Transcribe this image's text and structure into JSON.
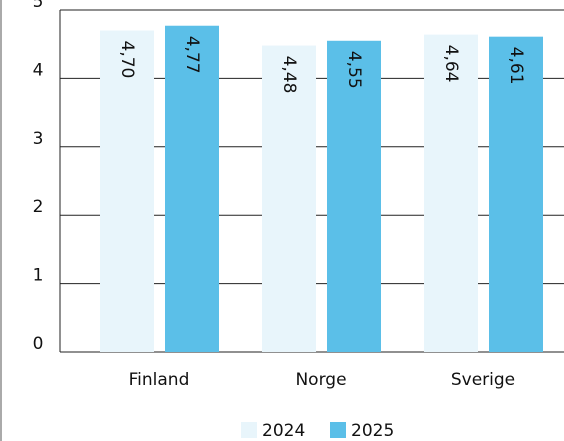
{
  "chart_data": {
    "type": "bar",
    "categories": [
      "Finland",
      "Norge",
      "Sverige"
    ],
    "series": [
      {
        "name": "2024",
        "color": "#e8f5fb",
        "values": [
          4.7,
          4.48,
          4.64
        ],
        "value_labels": [
          "4,70",
          "4,48",
          "4,64"
        ]
      },
      {
        "name": "2025",
        "color": "#5bbfe8",
        "values": [
          4.77,
          4.55,
          4.61
        ],
        "value_labels": [
          "4,77",
          "4,55",
          "4,61"
        ]
      }
    ],
    "ylim": [
      0,
      5
    ],
    "yticks": [
      0,
      1,
      2,
      3,
      4,
      5
    ],
    "grid": true,
    "legend": "bottom"
  }
}
